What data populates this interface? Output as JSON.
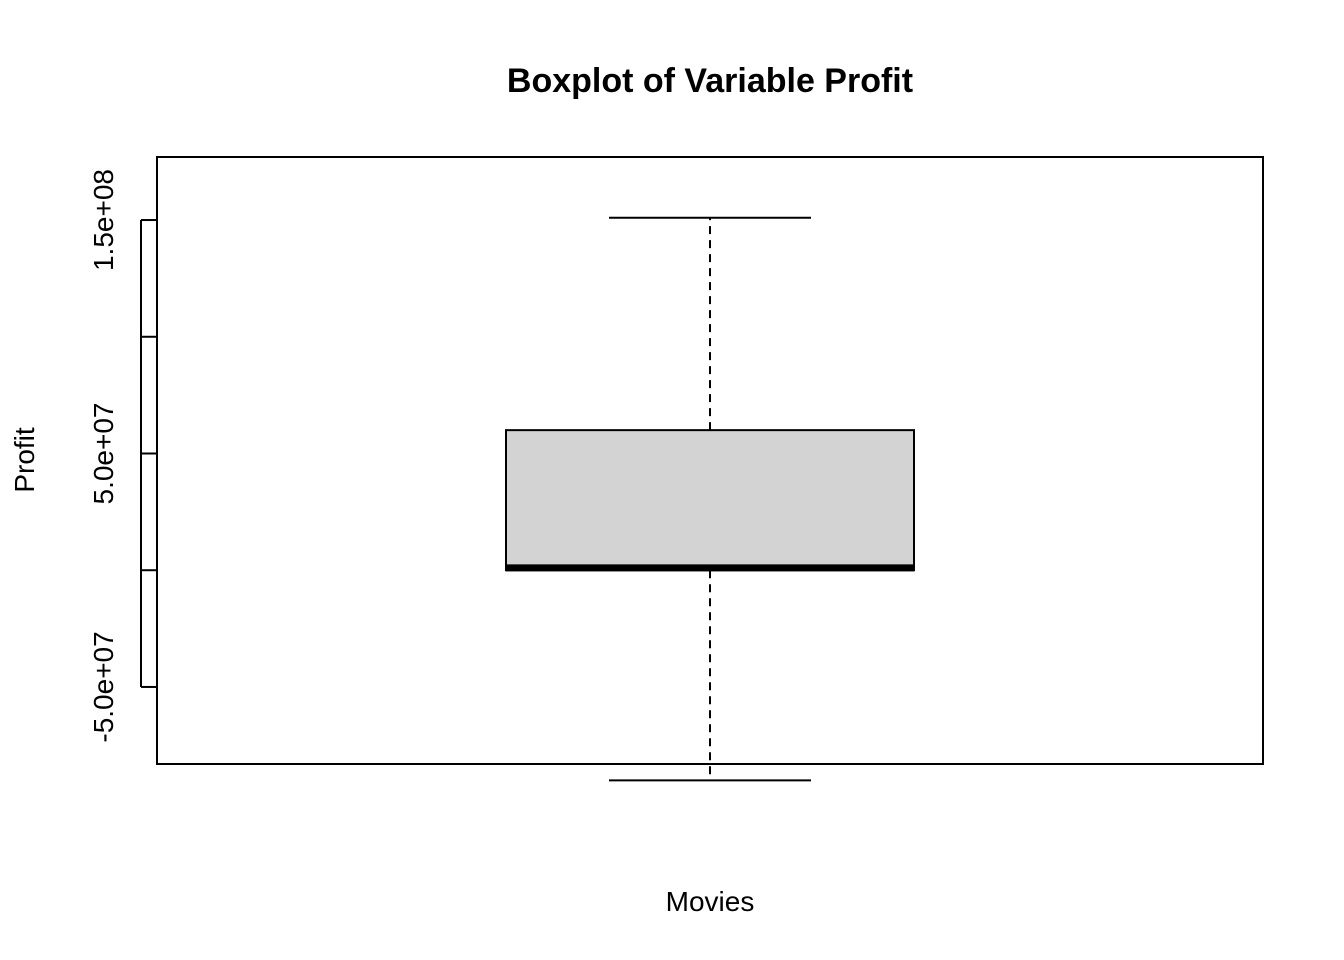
{
  "chart_data": {
    "type": "boxplot",
    "title": "Boxplot of Variable Profit",
    "xlabel": "Movies",
    "ylabel": "Profit",
    "ylim": [
      -83000000.0,
      177000000.0
    ],
    "yticks": [
      -50000000,
      0,
      50000000,
      100000000,
      150000000
    ],
    "ytick_labels": [
      "-5.0e+07",
      "",
      "5.0e+07",
      "",
      "1.5e+08"
    ],
    "box": {
      "whisker_low": -90000000,
      "q1": 0,
      "median": 1000000,
      "q3": 60000000,
      "whisker_high": 151000000
    },
    "box_fill": "#d3d3d3",
    "line_color": "#000000"
  }
}
